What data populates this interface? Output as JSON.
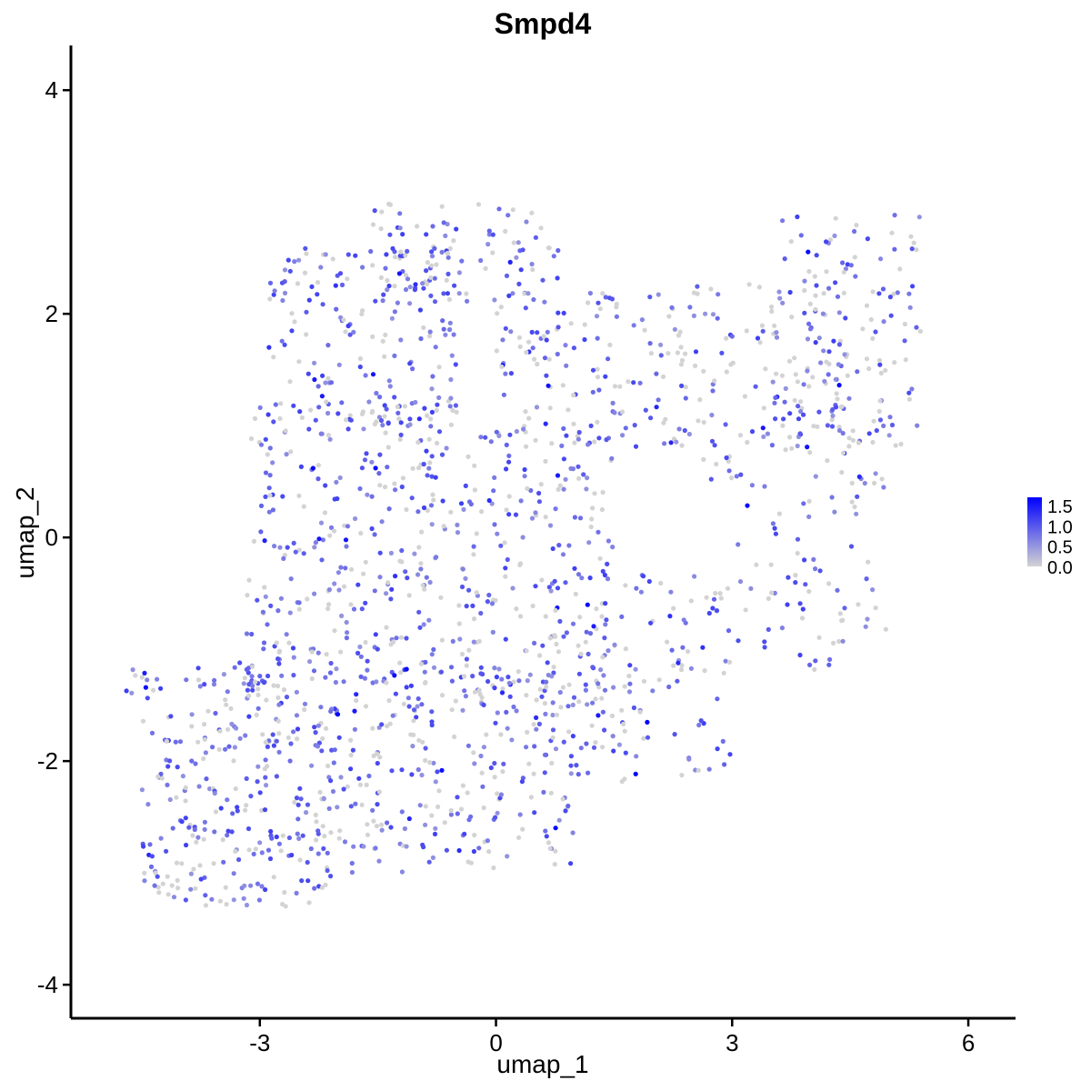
{
  "chart_data": {
    "type": "scatter",
    "title": "Smpd4",
    "xlabel": "umap_1",
    "ylabel": "umap_2",
    "xlim": [
      -5.4,
      6.6
    ],
    "ylim": [
      -4.3,
      4.4
    ],
    "xticks": [
      -3,
      0,
      3,
      6
    ],
    "yticks": [
      -4,
      -2,
      0,
      2,
      4
    ],
    "xtick_labels": [
      "-3",
      "0",
      "3",
      "6"
    ],
    "ytick_labels": [
      "-4",
      "-2",
      "0",
      "2",
      "4"
    ],
    "grid": false,
    "legend": {
      "placement": "right",
      "labels": [
        "1.5",
        "1.0",
        "0.5",
        "0.0"
      ],
      "values": [
        1.5,
        1.0,
        0.5,
        0.0
      ],
      "range": [
        0.0,
        1.7
      ]
    },
    "color_low": "#d3d3d3",
    "color_high": "#0000ff",
    "regions": [
      {
        "x": [
          -4.5,
          -2.0
        ],
        "y": [
          -3.3,
          -1.1
        ],
        "n": 320
      },
      {
        "x": [
          -3.2,
          -0.8
        ],
        "y": [
          -1.3,
          1.2
        ],
        "n": 260
      },
      {
        "x": [
          -2.9,
          -0.5
        ],
        "y": [
          1.0,
          2.6
        ],
        "n": 180
      },
      {
        "x": [
          -1.6,
          0.8
        ],
        "y": [
          2.1,
          3.0
        ],
        "n": 90
      },
      {
        "x": [
          -2.0,
          1.0
        ],
        "y": [
          -3.0,
          -1.2
        ],
        "n": 240
      },
      {
        "x": [
          -1.0,
          1.5
        ],
        "y": [
          -1.5,
          1.0
        ],
        "n": 230
      },
      {
        "x": [
          0.0,
          2.5
        ],
        "y": [
          0.8,
          2.2
        ],
        "n": 140
      },
      {
        "x": [
          0.5,
          3.0
        ],
        "y": [
          -2.2,
          -0.3
        ],
        "n": 160
      },
      {
        "x": [
          2.5,
          4.5
        ],
        "y": [
          0.5,
          2.3
        ],
        "n": 110
      },
      {
        "x": [
          3.5,
          5.4
        ],
        "y": [
          0.8,
          2.9
        ],
        "n": 150
      },
      {
        "x": [
          3.0,
          5.0
        ],
        "y": [
          -1.2,
          0.6
        ],
        "n": 80
      },
      {
        "x": [
          -4.7,
          -4.4
        ],
        "y": [
          -1.4,
          -1.1
        ],
        "n": 6
      }
    ]
  }
}
